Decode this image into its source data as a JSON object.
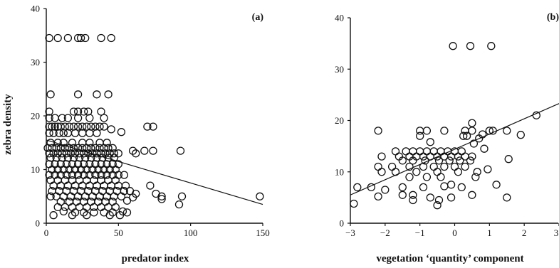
{
  "chart_data": [
    {
      "type": "scatter",
      "panel_label": "(a)",
      "xlabel": "predator index",
      "ylabel": "zebra density",
      "xlim": [
        0,
        150
      ],
      "ylim": [
        0,
        40
      ],
      "x_ticks": [
        "0",
        "50",
        "100",
        "150"
      ],
      "y_ticks": [
        "0",
        "10",
        "20",
        "30",
        "40"
      ],
      "regression_line": {
        "x": [
          0,
          150
        ],
        "y": [
          15.5,
          3.5
        ]
      },
      "points": [
        [
          2,
          34.5
        ],
        [
          8,
          34.5
        ],
        [
          15,
          34.5
        ],
        [
          22,
          34.5
        ],
        [
          24,
          34.5
        ],
        [
          27,
          34.5
        ],
        [
          38,
          34.5
        ],
        [
          45,
          34.5
        ],
        [
          3,
          24
        ],
        [
          22,
          24
        ],
        [
          35,
          24
        ],
        [
          43,
          24
        ],
        [
          2,
          20.8
        ],
        [
          2,
          19.6
        ],
        [
          6,
          19.6
        ],
        [
          11,
          19.6
        ],
        [
          15,
          19.6
        ],
        [
          19,
          20.8
        ],
        [
          22,
          20.8
        ],
        [
          26,
          20.8
        ],
        [
          29,
          20.8
        ],
        [
          38,
          20.8
        ],
        [
          22,
          19.6
        ],
        [
          30,
          19.6
        ],
        [
          40,
          19.6
        ],
        [
          2,
          18
        ],
        [
          4,
          18
        ],
        [
          6,
          18
        ],
        [
          8,
          18
        ],
        [
          10,
          18
        ],
        [
          13,
          18
        ],
        [
          16,
          18
        ],
        [
          19,
          18
        ],
        [
          22,
          18
        ],
        [
          25,
          18
        ],
        [
          28,
          18
        ],
        [
          31,
          18
        ],
        [
          34,
          18
        ],
        [
          37,
          18
        ],
        [
          40,
          18
        ],
        [
          45,
          17.5
        ],
        [
          2,
          16.8
        ],
        [
          5,
          16.8
        ],
        [
          9,
          16.8
        ],
        [
          12,
          16.8
        ],
        [
          15,
          16.8
        ],
        [
          20,
          16.8
        ],
        [
          25,
          16.8
        ],
        [
          30,
          16.8
        ],
        [
          35,
          16.8
        ],
        [
          52,
          17
        ],
        [
          70,
          18
        ],
        [
          74,
          18
        ],
        [
          3,
          15
        ],
        [
          8,
          15
        ],
        [
          12,
          15
        ],
        [
          18,
          15
        ],
        [
          25,
          15
        ],
        [
          30,
          15
        ],
        [
          37,
          15
        ],
        [
          42,
          15
        ],
        [
          1,
          14
        ],
        [
          4,
          14
        ],
        [
          7,
          14
        ],
        [
          10,
          14
        ],
        [
          13,
          14
        ],
        [
          16,
          14
        ],
        [
          19,
          14
        ],
        [
          22,
          14
        ],
        [
          25,
          14
        ],
        [
          28,
          14
        ],
        [
          31,
          14
        ],
        [
          34,
          14
        ],
        [
          37,
          14
        ],
        [
          40,
          14
        ],
        [
          43,
          14
        ],
        [
          46,
          14
        ],
        [
          2,
          13
        ],
        [
          5,
          13
        ],
        [
          8,
          13
        ],
        [
          11,
          13
        ],
        [
          14,
          13
        ],
        [
          17,
          13
        ],
        [
          20,
          13
        ],
        [
          23,
          13
        ],
        [
          26,
          13
        ],
        [
          29,
          13
        ],
        [
          32,
          13
        ],
        [
          35,
          13
        ],
        [
          38,
          13
        ],
        [
          41,
          13
        ],
        [
          44,
          13
        ],
        [
          47,
          13
        ],
        [
          50,
          13
        ],
        [
          3,
          12.2
        ],
        [
          7,
          12.2
        ],
        [
          11,
          12.2
        ],
        [
          15,
          12.2
        ],
        [
          19,
          12.2
        ],
        [
          23,
          12.2
        ],
        [
          27,
          12.2
        ],
        [
          31,
          12.2
        ],
        [
          35,
          12.2
        ],
        [
          39,
          12.2
        ],
        [
          43,
          12.2
        ],
        [
          47,
          12.2
        ],
        [
          60,
          13.5
        ],
        [
          62,
          13
        ],
        [
          68,
          13.5
        ],
        [
          74,
          13.5
        ],
        [
          93,
          13.5
        ],
        [
          2,
          11
        ],
        [
          6,
          11
        ],
        [
          10,
          11
        ],
        [
          14,
          11
        ],
        [
          18,
          11
        ],
        [
          22,
          11
        ],
        [
          26,
          11
        ],
        [
          30,
          11
        ],
        [
          34,
          11
        ],
        [
          38,
          11
        ],
        [
          42,
          11
        ],
        [
          46,
          11
        ],
        [
          50,
          11
        ],
        [
          4,
          10
        ],
        [
          8,
          10
        ],
        [
          12,
          10
        ],
        [
          16,
          10
        ],
        [
          20,
          10
        ],
        [
          24,
          10
        ],
        [
          28,
          10
        ],
        [
          32,
          10
        ],
        [
          36,
          10
        ],
        [
          40,
          10
        ],
        [
          44,
          10
        ],
        [
          48,
          10
        ],
        [
          2,
          9
        ],
        [
          6,
          9
        ],
        [
          10,
          9
        ],
        [
          14,
          9
        ],
        [
          18,
          9
        ],
        [
          22,
          9
        ],
        [
          26,
          9
        ],
        [
          30,
          9
        ],
        [
          34,
          9
        ],
        [
          38,
          9
        ],
        [
          42,
          9
        ],
        [
          46,
          9
        ],
        [
          50,
          9
        ],
        [
          54,
          9
        ],
        [
          3,
          8
        ],
        [
          8,
          8
        ],
        [
          13,
          8
        ],
        [
          18,
          8
        ],
        [
          23,
          8
        ],
        [
          28,
          8
        ],
        [
          33,
          8
        ],
        [
          38,
          8
        ],
        [
          43,
          8
        ],
        [
          48,
          8
        ],
        [
          5,
          7
        ],
        [
          10,
          7
        ],
        [
          15,
          7
        ],
        [
          20,
          7
        ],
        [
          25,
          7
        ],
        [
          30,
          7
        ],
        [
          35,
          7
        ],
        [
          40,
          7
        ],
        [
          45,
          7
        ],
        [
          50,
          7
        ],
        [
          55,
          7
        ],
        [
          72,
          7
        ],
        [
          4,
          6
        ],
        [
          9,
          6
        ],
        [
          14,
          6
        ],
        [
          19,
          6
        ],
        [
          24,
          6
        ],
        [
          29,
          6
        ],
        [
          34,
          6
        ],
        [
          39,
          6
        ],
        [
          44,
          6
        ],
        [
          49,
          6
        ],
        [
          54,
          6
        ],
        [
          58,
          6
        ],
        [
          62,
          5.5
        ],
        [
          3,
          5
        ],
        [
          7,
          5
        ],
        [
          12,
          5
        ],
        [
          17,
          5
        ],
        [
          22,
          5
        ],
        [
          27,
          5
        ],
        [
          32,
          5
        ],
        [
          37,
          5
        ],
        [
          42,
          5
        ],
        [
          47,
          5
        ],
        [
          52,
          5
        ],
        [
          60,
          4.8
        ],
        [
          76,
          5.5
        ],
        [
          80,
          5
        ],
        [
          94,
          5
        ],
        [
          148,
          5
        ],
        [
          10,
          4
        ],
        [
          16,
          4
        ],
        [
          21,
          4
        ],
        [
          26,
          4
        ],
        [
          31,
          4
        ],
        [
          36,
          4
        ],
        [
          41,
          4
        ],
        [
          46,
          4
        ],
        [
          56,
          4.2
        ],
        [
          80,
          4.5
        ],
        [
          8,
          3
        ],
        [
          13,
          3
        ],
        [
          18,
          3
        ],
        [
          23,
          3
        ],
        [
          28,
          3
        ],
        [
          33,
          3
        ],
        [
          38,
          3
        ],
        [
          43,
          3
        ],
        [
          48,
          3
        ],
        [
          92,
          3.5
        ],
        [
          12,
          2.2
        ],
        [
          20,
          2
        ],
        [
          26,
          2
        ],
        [
          33,
          2
        ],
        [
          40,
          2
        ],
        [
          46,
          2
        ],
        [
          53,
          2.2
        ],
        [
          5,
          1.5
        ],
        [
          18,
          1.5
        ],
        [
          28,
          1.5
        ],
        [
          44,
          1.5
        ],
        [
          51,
          1.5
        ],
        [
          56,
          2
        ]
      ]
    },
    {
      "type": "scatter",
      "panel_label": "(b)",
      "xlabel": "vegetation ‘quantity’ component",
      "ylabel": "",
      "xlim": [
        -3,
        3
      ],
      "ylim": [
        0,
        40
      ],
      "x_ticks": [
        "−3",
        "−2",
        "−1",
        "0",
        "1",
        "2",
        "3"
      ],
      "y_ticks": [
        "0",
        "10",
        "20",
        "30",
        "40"
      ],
      "regression_line": {
        "x": [
          -3,
          3
        ],
        "y": [
          5.5,
          23.3
        ]
      },
      "points": [
        [
          -0.05,
          34.5
        ],
        [
          0.45,
          34.5
        ],
        [
          1.05,
          34.5
        ],
        [
          2.35,
          21
        ],
        [
          0.5,
          19.5
        ],
        [
          -2.2,
          18
        ],
        [
          -1.0,
          18
        ],
        [
          -0.8,
          18
        ],
        [
          -0.3,
          18
        ],
        [
          0.3,
          18
        ],
        [
          0.5,
          18
        ],
        [
          1.0,
          18
        ],
        [
          1.1,
          18
        ],
        [
          1.5,
          18
        ],
        [
          1.9,
          17.2
        ],
        [
          0.8,
          17.3
        ],
        [
          -1.0,
          17
        ],
        [
          0.25,
          17
        ],
        [
          0.35,
          17
        ],
        [
          0.7,
          16.5
        ],
        [
          -0.7,
          15.8
        ],
        [
          0.55,
          15.5
        ],
        [
          0.85,
          14.5
        ],
        [
          -1.7,
          14
        ],
        [
          -1.4,
          14
        ],
        [
          -1.2,
          14
        ],
        [
          -1.0,
          14
        ],
        [
          -0.8,
          14
        ],
        [
          -0.6,
          14
        ],
        [
          -0.4,
          14
        ],
        [
          -0.2,
          14
        ],
        [
          0.0,
          14
        ],
        [
          0.2,
          14
        ],
        [
          -2.1,
          13
        ],
        [
          -1.6,
          13
        ],
        [
          -1.3,
          13
        ],
        [
          -1.1,
          13
        ],
        [
          -0.9,
          13
        ],
        [
          -0.7,
          13
        ],
        [
          -0.5,
          13
        ],
        [
          -0.3,
          13
        ],
        [
          -0.1,
          13
        ],
        [
          0.1,
          13
        ],
        [
          0.3,
          13
        ],
        [
          0.5,
          13
        ],
        [
          -1.5,
          12.2
        ],
        [
          -1.2,
          12.2
        ],
        [
          -0.85,
          12.2
        ],
        [
          -0.45,
          12.2
        ],
        [
          -0.15,
          12.2
        ],
        [
          0.15,
          12.2
        ],
        [
          0.45,
          12.2
        ],
        [
          1.55,
          12.5
        ],
        [
          -2.2,
          11
        ],
        [
          -1.8,
          11
        ],
        [
          -1.3,
          11
        ],
        [
          -0.9,
          11
        ],
        [
          -0.6,
          11
        ],
        [
          -0.3,
          11
        ],
        [
          0.0,
          11
        ],
        [
          0.3,
          11
        ],
        [
          -2.1,
          10
        ],
        [
          -1.7,
          10
        ],
        [
          -1.1,
          10
        ],
        [
          -0.5,
          10
        ],
        [
          0.1,
          10
        ],
        [
          0.65,
          10
        ],
        [
          0.95,
          10.5
        ],
        [
          -1.3,
          9
        ],
        [
          -0.8,
          9
        ],
        [
          -0.4,
          9
        ],
        [
          0.6,
          9
        ],
        [
          -2.8,
          7
        ],
        [
          -2.4,
          7
        ],
        [
          -1.5,
          7
        ],
        [
          -0.9,
          7
        ],
        [
          -0.3,
          7.2
        ],
        [
          0.2,
          7
        ],
        [
          -0.1,
          7.5
        ],
        [
          -2.0,
          6.5
        ],
        [
          -1.5,
          5.5
        ],
        [
          -1.2,
          5.5
        ],
        [
          -0.7,
          5
        ],
        [
          -0.45,
          4.5
        ],
        [
          -0.1,
          5
        ],
        [
          0.5,
          5.5
        ],
        [
          1.5,
          5
        ],
        [
          -2.9,
          3.8
        ],
        [
          -2.2,
          5.2
        ],
        [
          -1.2,
          4.5
        ],
        [
          -0.5,
          3.5
        ],
        [
          1.2,
          7.5
        ]
      ]
    }
  ]
}
